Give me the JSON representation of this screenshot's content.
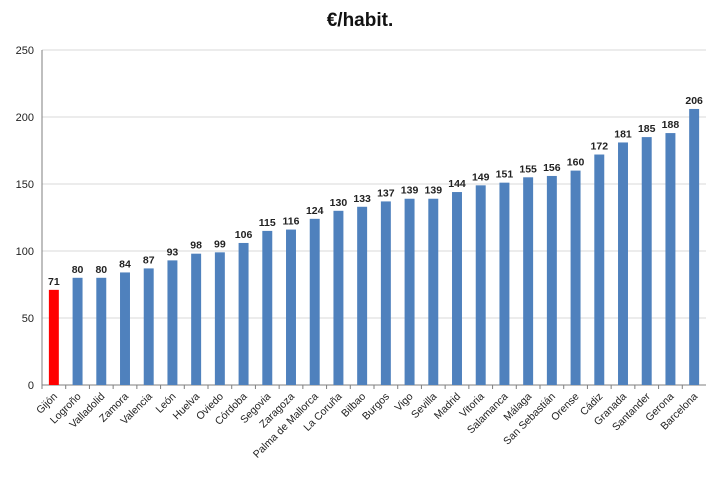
{
  "chart_data": {
    "type": "bar",
    "title": "€/habit.",
    "xlabel": "",
    "ylabel": "",
    "ylim": [
      0,
      250
    ],
    "yticks": [
      0,
      50,
      100,
      150,
      200,
      250
    ],
    "grid": true,
    "legend": "none",
    "categories": [
      "Gijón",
      "Logroño",
      "Valladolid",
      "Zamora",
      "Valencia",
      "León",
      "Huelva",
      "Oviedo",
      "Córdoba",
      "Segovia",
      "Zaragoza",
      "Palma de Mallorca",
      "La Coruña",
      "Bilbao",
      "Burgos",
      "Vigo",
      "Sevilla",
      "Madrid",
      "Vitoria",
      "Salamanca",
      "Málaga",
      "San Sebastián",
      "Orense",
      "Cádiz",
      "Granada",
      "Santander",
      "Gerona",
      "Barcelona"
    ],
    "values": [
      71,
      80,
      80,
      84,
      87,
      93,
      98,
      99,
      106,
      115,
      116,
      124,
      130,
      133,
      137,
      139,
      139,
      144,
      149,
      151,
      155,
      156,
      160,
      172,
      181,
      185,
      188,
      206
    ],
    "highlight_index": 0,
    "colors": {
      "bar": "#4f81bd",
      "highlight_bar": "#ff0000",
      "highlight_label": "#c00000",
      "grid": "#d9d9d9",
      "axis": "#7f7f7f"
    }
  }
}
